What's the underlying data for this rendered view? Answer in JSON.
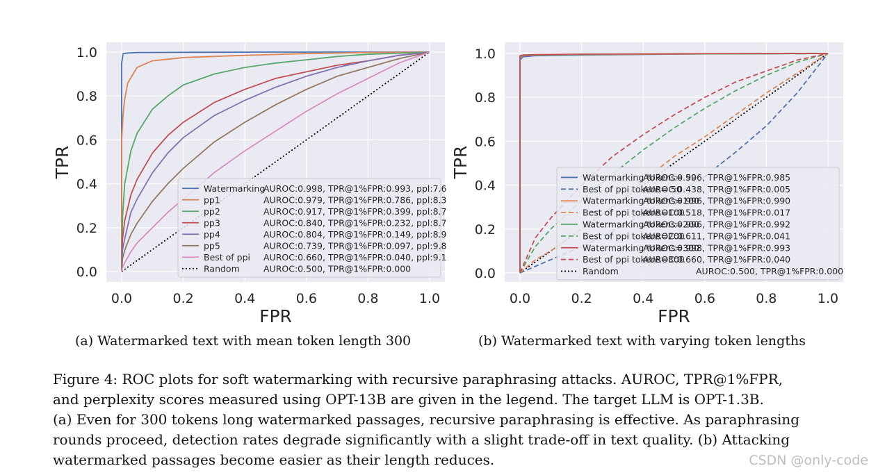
{
  "subcaptions": {
    "a": "(a) Watermarked text with mean token length 300",
    "b": "(b) Watermarked text with varying token lengths"
  },
  "caption_lines": [
    "Figure 4: ROC plots for soft watermarking with recursive paraphrasing attacks. AUROC, TPR@1%FPR,",
    "and perplexity scores measured using OPT-13B are given in the legend. The target LLM is OPT-1.3B.",
    "(a) Even for 300 tokens long watermarked passages, recursive paraphrasing is effective. As paraphrasing",
    "rounds proceed, detection rates degrade significantly with a slight trade-off in text quality. (b) Attacking",
    "watermarked passages become easier as their length reduces."
  ],
  "watermark_text": "CSDN @only-code",
  "chart_data": [
    {
      "type": "line",
      "id": "a",
      "xlabel": "FPR",
      "ylabel": "TPR",
      "xlim": [
        0,
        1
      ],
      "ylim": [
        0,
        1
      ],
      "xticks": [
        "0.0",
        "0.2",
        "0.4",
        "0.6",
        "0.8",
        "1.0"
      ],
      "yticks": [
        "0.0",
        "0.2",
        "0.4",
        "0.6",
        "0.8",
        "1.0"
      ],
      "grid": true,
      "legend_position": "lower-right",
      "series": [
        {
          "name": "Watermarking",
          "legend_stats": "AUROC:0.998, TPR@1%FPR:0.993, ppl:7.6",
          "color": "#4c72b0",
          "dash": "solid",
          "x": [
            0,
            0,
            0.005,
            0.02,
            0.05,
            0.2,
            0.5,
            0.8,
            1.0
          ],
          "y": [
            0,
            0.95,
            0.993,
            0.996,
            0.998,
            0.999,
            1.0,
            1.0,
            1.0
          ]
        },
        {
          "name": "pp1",
          "legend_stats": "AUROC:0.979, TPR@1%FPR:0.786, ppl:8.3",
          "color": "#dd8452",
          "dash": "solid",
          "x": [
            0,
            0,
            0.005,
            0.01,
            0.02,
            0.05,
            0.1,
            0.2,
            0.4,
            0.6,
            0.8,
            1.0
          ],
          "y": [
            0,
            0.6,
            0.72,
            0.786,
            0.86,
            0.93,
            0.96,
            0.975,
            0.985,
            0.993,
            0.998,
            1.0
          ]
        },
        {
          "name": "pp2",
          "legend_stats": "AUROC:0.917, TPR@1%FPR:0.399, ppl:8.7",
          "color": "#55a868",
          "dash": "solid",
          "x": [
            0,
            0.003,
            0.01,
            0.03,
            0.05,
            0.1,
            0.15,
            0.2,
            0.3,
            0.4,
            0.5,
            0.6,
            0.7,
            0.8,
            0.9,
            1.0
          ],
          "y": [
            0,
            0.25,
            0.399,
            0.55,
            0.63,
            0.74,
            0.8,
            0.85,
            0.9,
            0.93,
            0.95,
            0.965,
            0.98,
            0.99,
            0.995,
            1.0
          ]
        },
        {
          "name": "pp3",
          "legend_stats": "AUROC:0.840, TPR@1%FPR:0.232, ppl:8.7",
          "color": "#c44e52",
          "dash": "solid",
          "x": [
            0,
            0.003,
            0.01,
            0.03,
            0.05,
            0.1,
            0.15,
            0.2,
            0.3,
            0.4,
            0.5,
            0.6,
            0.7,
            0.8,
            0.9,
            1.0
          ],
          "y": [
            0,
            0.15,
            0.232,
            0.35,
            0.42,
            0.54,
            0.62,
            0.68,
            0.77,
            0.83,
            0.88,
            0.91,
            0.94,
            0.96,
            0.985,
            1.0
          ]
        },
        {
          "name": "pp4",
          "legend_stats": "AUROC:0.804, TPR@1%FPR:0.149, ppl:8.9",
          "color": "#8172b3",
          "dash": "solid",
          "x": [
            0,
            0.003,
            0.01,
            0.03,
            0.05,
            0.1,
            0.15,
            0.2,
            0.3,
            0.4,
            0.5,
            0.6,
            0.7,
            0.8,
            0.9,
            1.0
          ],
          "y": [
            0,
            0.1,
            0.149,
            0.27,
            0.33,
            0.45,
            0.54,
            0.61,
            0.71,
            0.78,
            0.84,
            0.89,
            0.93,
            0.96,
            0.985,
            1.0
          ]
        },
        {
          "name": "pp5",
          "legend_stats": "AUROC:0.739, TPR@1%FPR:0.097, ppl:9.8",
          "color": "#937860",
          "dash": "solid",
          "x": [
            0,
            0.003,
            0.01,
            0.03,
            0.05,
            0.1,
            0.15,
            0.2,
            0.3,
            0.4,
            0.5,
            0.6,
            0.7,
            0.8,
            0.9,
            1.0
          ],
          "y": [
            0,
            0.06,
            0.097,
            0.17,
            0.22,
            0.32,
            0.4,
            0.47,
            0.59,
            0.68,
            0.76,
            0.83,
            0.89,
            0.93,
            0.97,
            1.0
          ]
        },
        {
          "name": "Best of ppi",
          "legend_stats": "AUROC:0.660, TPR@1%FPR:0.040, ppl:9.1",
          "color": "#da8bc3",
          "dash": "solid",
          "x": [
            0,
            0.003,
            0.01,
            0.03,
            0.05,
            0.1,
            0.15,
            0.2,
            0.3,
            0.4,
            0.5,
            0.6,
            0.7,
            0.8,
            0.9,
            1.0
          ],
          "y": [
            0,
            0.02,
            0.04,
            0.09,
            0.13,
            0.2,
            0.27,
            0.33,
            0.45,
            0.55,
            0.64,
            0.73,
            0.81,
            0.88,
            0.95,
            1.0
          ]
        },
        {
          "name": "Random",
          "legend_stats": "AUROC:0.500, TPR@1%FPR:0.000",
          "color": "#000000",
          "dash": "dotted",
          "x": [
            0,
            1
          ],
          "y": [
            0,
            1
          ]
        }
      ]
    },
    {
      "type": "line",
      "id": "b",
      "xlabel": "FPR",
      "ylabel": "TPR",
      "xlim": [
        0,
        1
      ],
      "ylim": [
        0,
        1
      ],
      "xticks": [
        "0.0",
        "0.2",
        "0.4",
        "0.6",
        "0.8",
        "1.0"
      ],
      "yticks": [
        "0.0",
        "0.2",
        "0.4",
        "0.6",
        "0.8",
        "1.0"
      ],
      "grid": true,
      "legend_position": "lower-right",
      "series": [
        {
          "name": "Watermarking tokens= 50",
          "legend_stats": "AUROC:0.996, TPR@1%FPR:0.985",
          "color": "#4c72b0",
          "dash": "solid",
          "x": [
            0,
            0,
            0.01,
            0.05,
            0.2,
            0.6,
            1.0
          ],
          "y": [
            0,
            0.97,
            0.985,
            0.99,
            0.993,
            0.998,
            1.0
          ]
        },
        {
          "name": "Best of ppi   tokens= 50",
          "legend_stats": "AUROC:0.438, TPR@1%FPR:0.005",
          "color": "#4c72b0",
          "dash": "dashed",
          "x": [
            0,
            0.05,
            0.1,
            0.2,
            0.3,
            0.4,
            0.5,
            0.6,
            0.7,
            0.8,
            0.9,
            1.0
          ],
          "y": [
            0,
            0.03,
            0.06,
            0.12,
            0.19,
            0.27,
            0.35,
            0.44,
            0.55,
            0.67,
            0.82,
            1.0
          ]
        },
        {
          "name": "Watermarking tokens=100",
          "legend_stats": "AUROC:0.996, TPR@1%FPR:0.990",
          "color": "#dd8452",
          "dash": "solid",
          "x": [
            0,
            0,
            0.01,
            0.05,
            0.2,
            0.6,
            1.0
          ],
          "y": [
            0,
            0.98,
            0.99,
            0.993,
            0.995,
            0.998,
            1.0
          ]
        },
        {
          "name": "Best of ppi   tokens=100",
          "legend_stats": "AUROC:0.518, TPR@1%FPR:0.017",
          "color": "#dd8452",
          "dash": "dashed",
          "x": [
            0,
            0.05,
            0.1,
            0.2,
            0.3,
            0.4,
            0.5,
            0.6,
            0.7,
            0.8,
            0.9,
            1.0
          ],
          "y": [
            0,
            0.06,
            0.1,
            0.2,
            0.3,
            0.42,
            0.53,
            0.62,
            0.72,
            0.82,
            0.91,
            1.0
          ]
        },
        {
          "name": "Watermarking tokens=200",
          "legend_stats": "AUROC:0.996, TPR@1%FPR:0.992",
          "color": "#55a868",
          "dash": "solid",
          "x": [
            0,
            0,
            0.01,
            0.05,
            0.2,
            0.6,
            1.0
          ],
          "y": [
            0,
            0.985,
            0.992,
            0.994,
            0.996,
            0.998,
            1.0
          ]
        },
        {
          "name": "Best of ppi   tokens=200",
          "legend_stats": "AUROC:0.611, TPR@1%FPR:0.041",
          "color": "#55a868",
          "dash": "dashed",
          "x": [
            0,
            0.05,
            0.1,
            0.2,
            0.3,
            0.4,
            0.5,
            0.6,
            0.7,
            0.8,
            0.9,
            1.0
          ],
          "y": [
            0,
            0.12,
            0.2,
            0.33,
            0.45,
            0.56,
            0.66,
            0.75,
            0.83,
            0.9,
            0.96,
            1.0
          ]
        },
        {
          "name": "Watermarking tokens=300",
          "legend_stats": "AUROC:0.998, TPR@1%FPR:0.993",
          "color": "#c44e52",
          "dash": "solid",
          "x": [
            0,
            0,
            0.01,
            0.05,
            0.2,
            0.6,
            1.0
          ],
          "y": [
            0,
            0.99,
            0.993,
            0.995,
            0.997,
            0.999,
            1.0
          ]
        },
        {
          "name": "Best of ppi   tokens=300",
          "legend_stats": "AUROC:0.660, TPR@1%FPR:0.040",
          "color": "#c44e52",
          "dash": "dashed",
          "x": [
            0,
            0.05,
            0.1,
            0.2,
            0.3,
            0.4,
            0.5,
            0.6,
            0.7,
            0.8,
            0.9,
            1.0
          ],
          "y": [
            0,
            0.16,
            0.25,
            0.4,
            0.53,
            0.63,
            0.72,
            0.8,
            0.87,
            0.92,
            0.97,
            1.0
          ]
        },
        {
          "name": "Random",
          "legend_stats": "AUROC:0.500, TPR@1%FPR:0.000",
          "color": "#000000",
          "dash": "dotted",
          "x": [
            0,
            1
          ],
          "y": [
            0,
            1
          ]
        }
      ]
    }
  ]
}
